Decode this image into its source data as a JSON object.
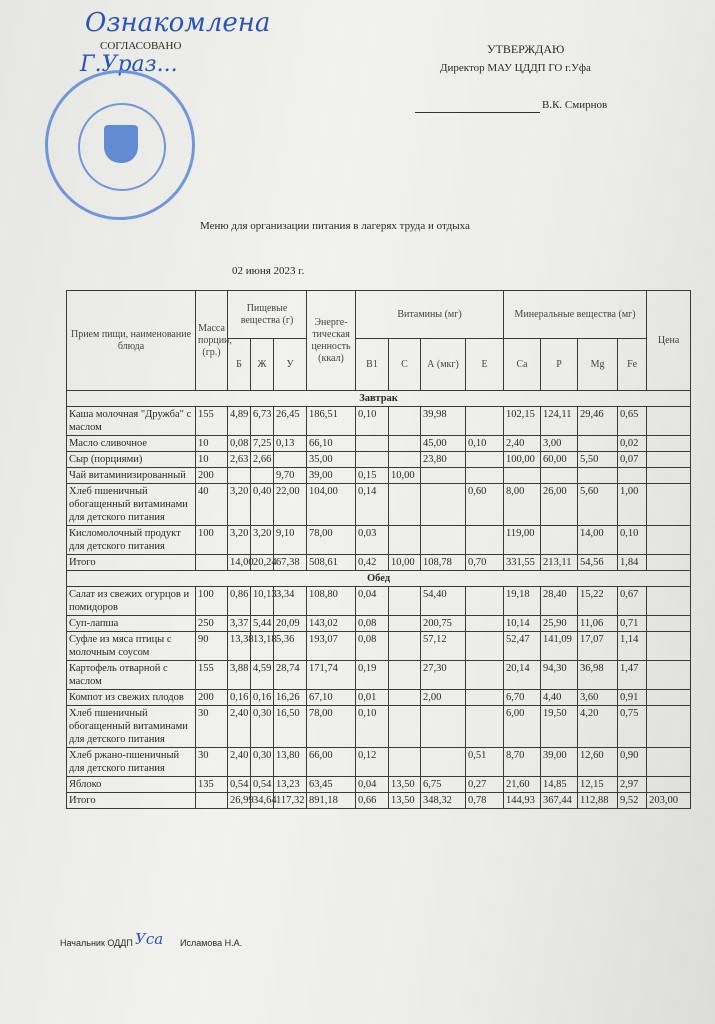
{
  "header_left": {
    "handwritten_note": "Ознакомлена",
    "approved_label": "СОГЛАСОВАНО",
    "signature_name": "Г.Ураз..."
  },
  "header_right": {
    "approve_label": "УТВЕРЖДАЮ",
    "position": "Директор МАУ ЦДДП ГО г.Уфа",
    "name": "В.К. Смирнов"
  },
  "title": "Меню для организации питания в лагерях труда и отдыха",
  "date": "02 июня 2023 г.",
  "table": {
    "headers": {
      "dish": "Прием пищи, наименование блюда",
      "mass": "Масса порции, (гр.)",
      "nutrients": "Пищевые вещества (г)",
      "energy": "Энерге-тическая ценность (ккал)",
      "vitamins": "Витамины (мг)",
      "minerals": "Минеральные вещества (мг)",
      "price": "Цена",
      "sub": [
        "Б",
        "Ж",
        "У",
        "В1",
        "С",
        "А (мкг)",
        "Е",
        "Са",
        "Р",
        "Mg",
        "Fe"
      ]
    },
    "sections": [
      {
        "name": "Завтрак",
        "rows": [
          [
            "Каша молочная \"Дружба\" с маслом",
            "155",
            "4,89",
            "6,73",
            "26,45",
            "186,51",
            "0,10",
            "",
            "39,98",
            "",
            "102,15",
            "124,11",
            "29,46",
            "0,65",
            ""
          ],
          [
            "Масло сливочное",
            "10",
            "0,08",
            "7,25",
            "0,13",
            "66,10",
            "",
            "",
            "45,00",
            "0,10",
            "2,40",
            "3,00",
            "",
            "0,02",
            ""
          ],
          [
            "Сыр (порциями)",
            "10",
            "2,63",
            "2,66",
            "",
            "35,00",
            "",
            "",
            "23,80",
            "",
            "100,00",
            "60,00",
            "5,50",
            "0,07",
            ""
          ],
          [
            "Чай витаминизированный",
            "200",
            "",
            "",
            "9,70",
            "39,00",
            "0,15",
            "10,00",
            "",
            "",
            "",
            "",
            "",
            "",
            ""
          ],
          [
            "Хлеб пшеничный обогащенный витаминами для детского питания",
            "40",
            "3,20",
            "0,40",
            "22,00",
            "104,00",
            "0,14",
            "",
            "",
            "0,60",
            "8,00",
            "26,00",
            "5,60",
            "1,00",
            ""
          ],
          [
            "Кисломолочный продукт для детского питания",
            "100",
            "3,20",
            "3,20",
            "9,10",
            "78,00",
            "0,03",
            "",
            "",
            "",
            "119,00",
            "",
            "14,00",
            "0,10",
            ""
          ],
          [
            "Итого",
            "",
            "14,00",
            "20,24",
            "67,38",
            "508,61",
            "0,42",
            "10,00",
            "108,78",
            "0,70",
            "331,55",
            "213,11",
            "54,56",
            "1,84",
            ""
          ]
        ]
      },
      {
        "name": "Обед",
        "rows": [
          [
            "Салат из свежих огурцов и помидоров",
            "100",
            "0,86",
            "10,13",
            "3,34",
            "108,80",
            "0,04",
            "",
            "54,40",
            "",
            "19,18",
            "28,40",
            "15,22",
            "0,67",
            ""
          ],
          [
            "Суп-лапша",
            "250",
            "3,37",
            "5,44",
            "20,09",
            "143,02",
            "0,08",
            "",
            "200,75",
            "",
            "10,14",
            "25,90",
            "11,06",
            "0,71",
            ""
          ],
          [
            "Суфле из мяса птицы с молочным соусом",
            "90",
            "13,38",
            "13,18",
            "5,36",
            "193,07",
            "0,08",
            "",
            "57,12",
            "",
            "52,47",
            "141,09",
            "17,07",
            "1,14",
            ""
          ],
          [
            "Картофель отварной с маслом",
            "155",
            "3,88",
            "4,59",
            "28,74",
            "171,74",
            "0,19",
            "",
            "27,30",
            "",
            "20,14",
            "94,30",
            "36,98",
            "1,47",
            ""
          ],
          [
            "Компот из свежих плодов",
            "200",
            "0,16",
            "0,16",
            "16,26",
            "67,10",
            "0,01",
            "",
            "2,00",
            "",
            "6,70",
            "4,40",
            "3,60",
            "0,91",
            ""
          ],
          [
            "Хлеб пшеничный обогащенный витаминами для детского питания",
            "30",
            "2,40",
            "0,30",
            "16,50",
            "78,00",
            "0,10",
            "",
            "",
            "",
            "6,00",
            "19,50",
            "4,20",
            "0,75",
            ""
          ],
          [
            "Хлеб ржано-пшеничный для детского питания",
            "30",
            "2,40",
            "0,30",
            "13,80",
            "66,00",
            "0,12",
            "",
            "",
            "0,51",
            "8,70",
            "39,00",
            "12,60",
            "0,90",
            ""
          ],
          [
            "Яблоко",
            "135",
            "0,54",
            "0,54",
            "13,23",
            "63,45",
            "0,04",
            "13,50",
            "6,75",
            "0,27",
            "21,60",
            "14,85",
            "12,15",
            "2,97",
            ""
          ],
          [
            "Итого",
            "",
            "26,99",
            "34,64",
            "117,32",
            "891,18",
            "0,66",
            "13,50",
            "348,32",
            "0,78",
            "144,93",
            "367,44",
            "112,88",
            "9,52",
            "203,00"
          ]
        ]
      }
    ]
  },
  "footer": {
    "position": "Начальник ОДДП",
    "name": "Исламова Н.А."
  },
  "colors": {
    "ink": "#2a2a2a",
    "stamp": "#5b8ad6",
    "handwriting": "#2a55b8"
  }
}
